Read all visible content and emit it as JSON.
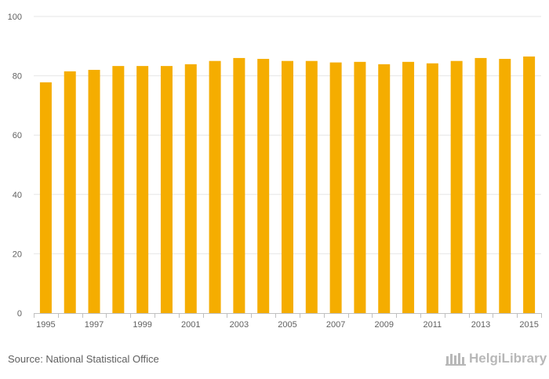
{
  "chart_data": {
    "type": "bar",
    "title": "",
    "xlabel": "",
    "ylabel": "",
    "categories": [
      "1995",
      "1996",
      "1997",
      "1998",
      "1999",
      "2000",
      "2001",
      "2002",
      "2003",
      "2004",
      "2005",
      "2006",
      "2007",
      "2008",
      "2009",
      "2010",
      "2011",
      "2012",
      "2013",
      "2014",
      "2015"
    ],
    "x_tick_labels": [
      "1995",
      "1997",
      "1999",
      "2001",
      "2003",
      "2005",
      "2007",
      "2009",
      "2011",
      "2013",
      "2015"
    ],
    "values": [
      77.8,
      81.5,
      82.0,
      83.3,
      83.3,
      83.3,
      83.9,
      85.0,
      86.0,
      85.7,
      85.0,
      85.0,
      84.5,
      84.7,
      83.9,
      84.7,
      84.2,
      85.0,
      86.0,
      85.7,
      86.5
    ],
    "ylim": [
      0,
      100
    ],
    "y_ticks": [
      0,
      20,
      40,
      60,
      80,
      100
    ],
    "grid": true,
    "legend": "none",
    "bar_color": "#f5ad00",
    "grid_color": "#e6e6e6"
  },
  "footer": {
    "source": "Source: National Statistical Office",
    "brand": "HelgiLibrary"
  }
}
